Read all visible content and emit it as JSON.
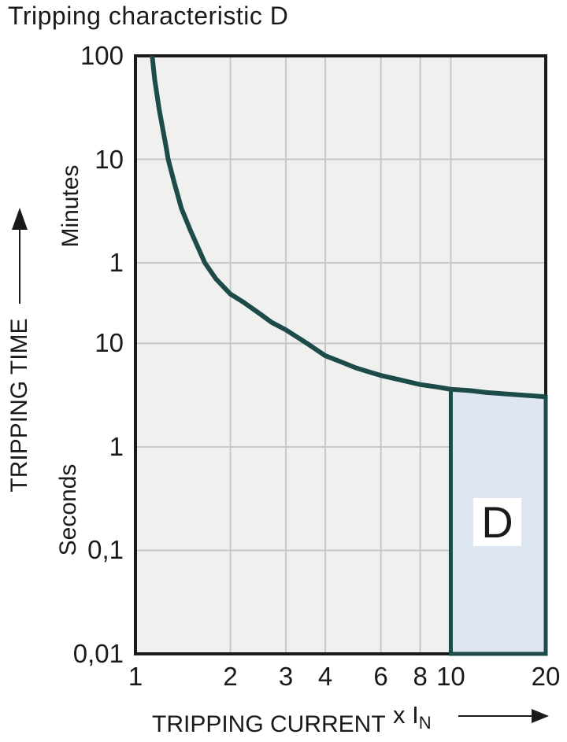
{
  "title": "Tripping characteristic D",
  "colors": {
    "text": "#1a1a1a",
    "frame": "#1a1a1a",
    "plot_background": "#f0f0ee",
    "gridline": "#c5c7cd",
    "curve": "#1d4b4a",
    "region_fill": "#dee5f3",
    "region_border": "#1d4b4a",
    "region_label_background": "#ffffff"
  },
  "chart_data": {
    "type": "line",
    "title": "Tripping characteristic D",
    "x_scale": "log",
    "y_scale": "log",
    "grid": "on",
    "xlabel": "TRIPPING CURRENT",
    "xlabel_unit": "x I",
    "xlabel_unit_sub": "N",
    "ylabel": "TRIPPING TIME",
    "x_range": [
      1,
      20
    ],
    "y_range_seconds": [
      6000,
      0.01
    ],
    "x_ticks": [
      {
        "label": "1",
        "value": 1
      },
      {
        "label": "2",
        "value": 2
      },
      {
        "label": "3",
        "value": 3
      },
      {
        "label": "4",
        "value": 4
      },
      {
        "label": "6",
        "value": 6
      },
      {
        "label": "8",
        "value": 8
      },
      {
        "label": "10",
        "value": 10
      },
      {
        "label": "20",
        "value": 20
      }
    ],
    "y_ticks": [
      {
        "label": "100",
        "seconds": 6000
      },
      {
        "label": "10",
        "seconds": 600
      },
      {
        "label": "1",
        "seconds": 60
      },
      {
        "label": "10",
        "seconds": 10
      },
      {
        "label": "1",
        "seconds": 1
      },
      {
        "label": "0,1",
        "seconds": 0.1
      },
      {
        "label": "0,01",
        "seconds": 0.01
      }
    ],
    "y_unit_upper": "Minutes",
    "y_unit_lower": "Seconds",
    "series": [
      {
        "name": "D tripping curve",
        "points": [
          [
            1.13,
            6000
          ],
          [
            1.15,
            3600
          ],
          [
            1.19,
            1800
          ],
          [
            1.25,
            800
          ],
          [
            1.27,
            600
          ],
          [
            1.33,
            350
          ],
          [
            1.4,
            200
          ],
          [
            1.5,
            120
          ],
          [
            1.66,
            60
          ],
          [
            1.8,
            42
          ],
          [
            2.0,
            30
          ],
          [
            2.2,
            25
          ],
          [
            2.5,
            19
          ],
          [
            2.7,
            16
          ],
          [
            3.0,
            13.5
          ],
          [
            3.5,
            10
          ],
          [
            4.0,
            7.6
          ],
          [
            4.5,
            6.6
          ],
          [
            5.0,
            5.8
          ],
          [
            5.5,
            5.3
          ],
          [
            6.0,
            4.9
          ],
          [
            7.0,
            4.4
          ],
          [
            8.0,
            4.0
          ],
          [
            9.0,
            3.8
          ],
          [
            10.0,
            3.6
          ],
          [
            11.5,
            3.5
          ],
          [
            13.0,
            3.35
          ],
          [
            16.0,
            3.2
          ],
          [
            20.0,
            3.05
          ]
        ]
      }
    ],
    "region": {
      "label": "D",
      "x_from": 10,
      "x_to": 20,
      "t_bottom": 0.01,
      "top_follows_curve": true
    }
  }
}
